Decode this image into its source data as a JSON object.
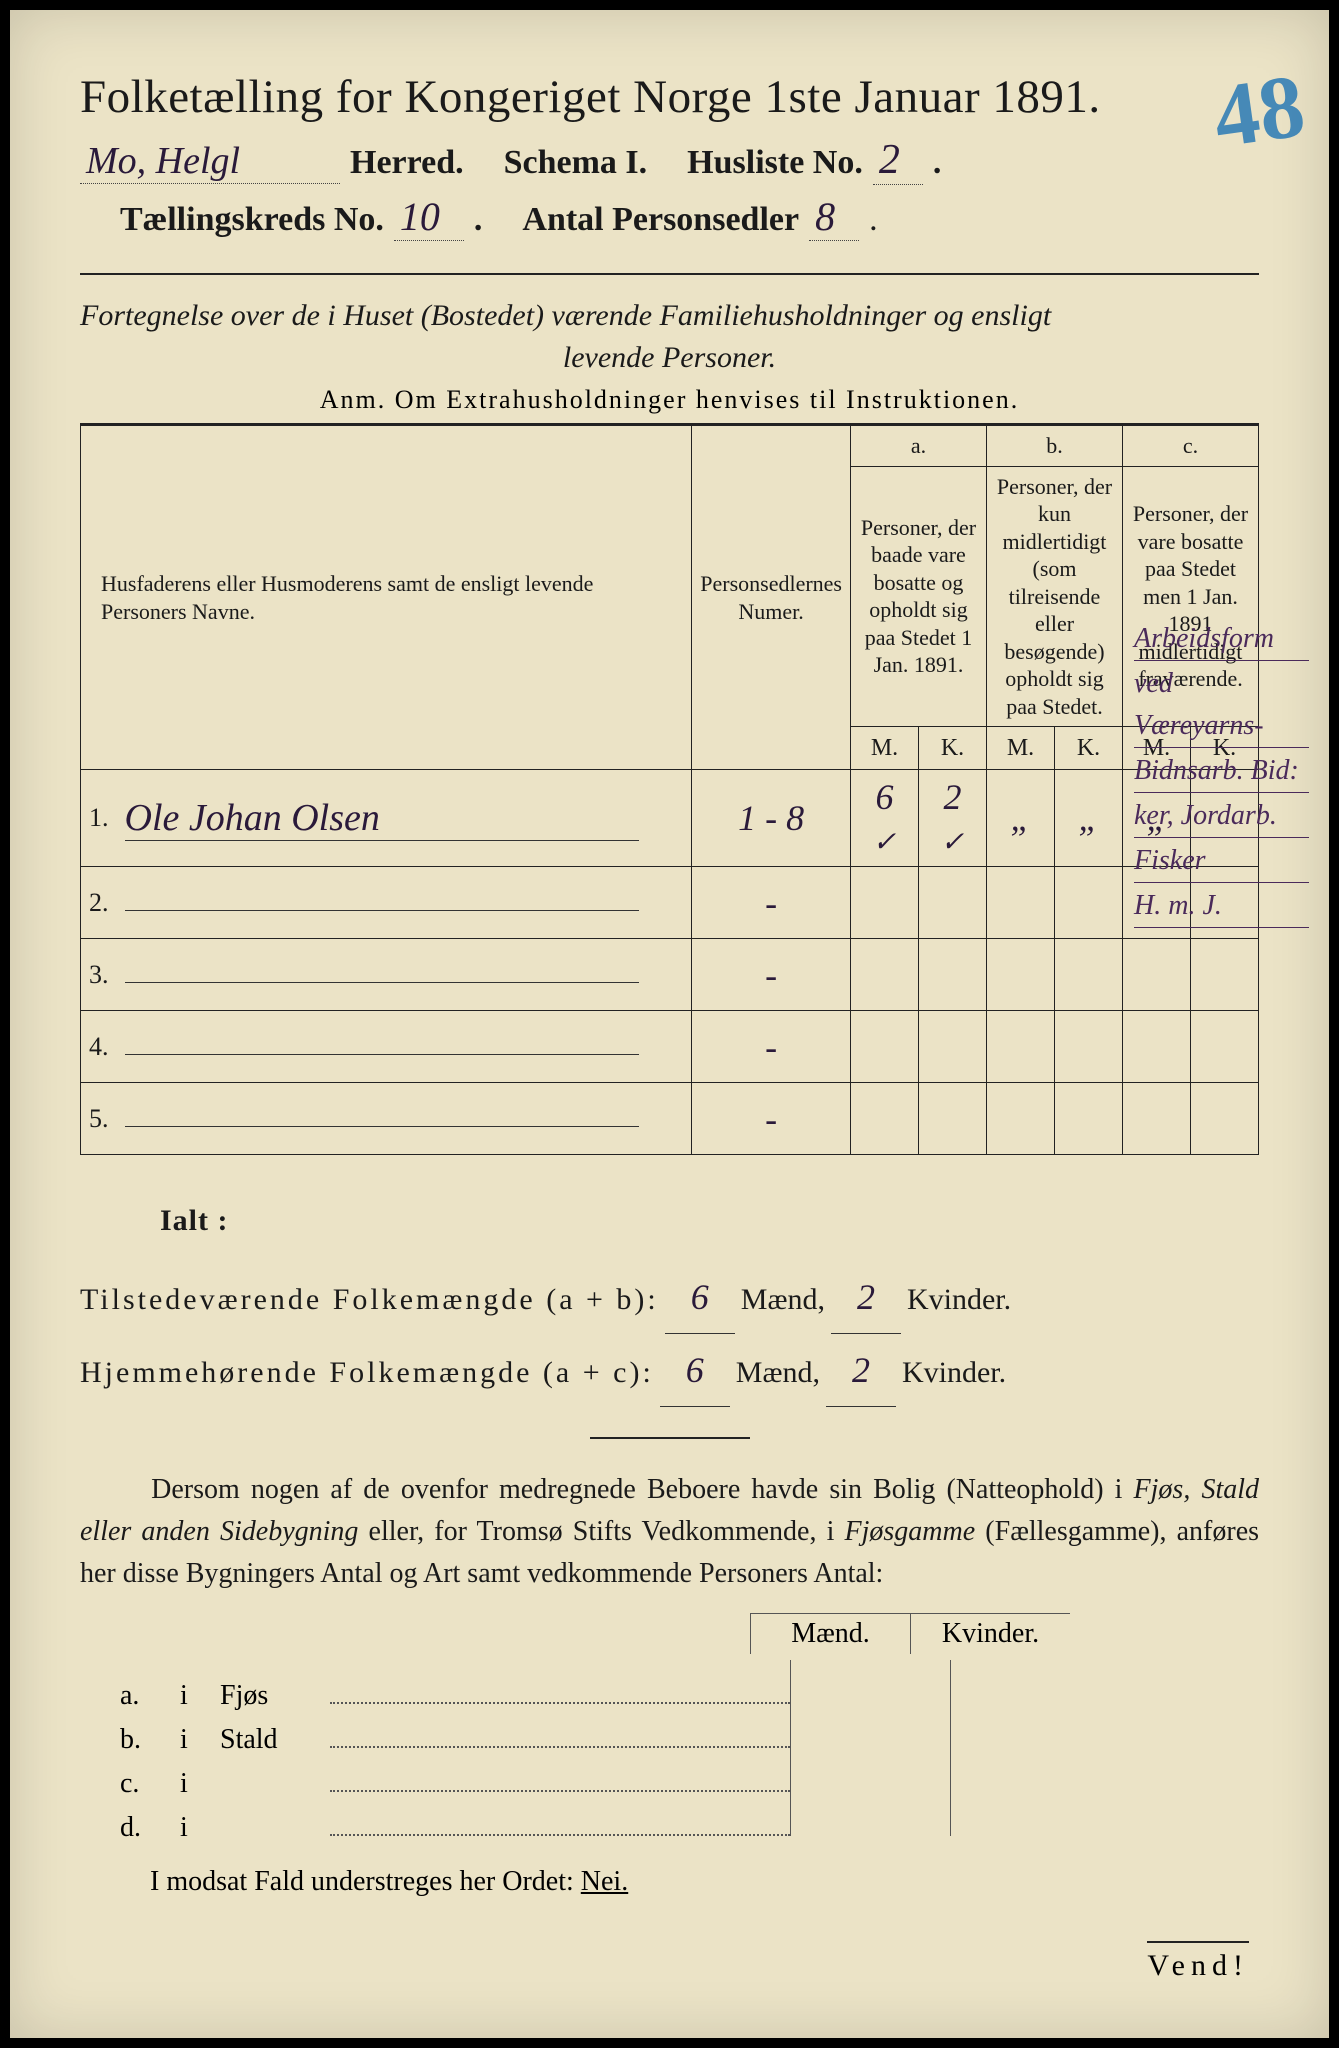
{
  "page": {
    "background_color": "#ebe3c6",
    "text_color": "#1a1a1a",
    "handwriting_color": "#2a1a3a",
    "corner_color": "#2a7ab5"
  },
  "corner_number": "48",
  "header": {
    "title": "Folketælling for Kongeriget Norge 1ste Januar 1891.",
    "herred_hw": "Mo, Helgl",
    "herred_label": "Herred.",
    "schema": "Schema I.",
    "husliste_label": "Husliste No.",
    "husliste_hw": "2",
    "kreds_label": "Tællingskreds No.",
    "kreds_hw": "10",
    "antal_label": "Antal Personsedler",
    "antal_hw": "8"
  },
  "subheader": {
    "line1": "Fortegnelse over de i Huset (Bostedet) værende Familiehusholdninger og ensligt",
    "line2": "levende Personer.",
    "anm": "Anm.  Om Extrahusholdninger henvises til Instruktionen."
  },
  "table": {
    "col_name": "Husfaderens eller Husmoderens samt de ensligt levende Personers Navne.",
    "col_num": "Personsedlernes Numer.",
    "col_a_top": "a.",
    "col_a": "Personer, der baade vare bosatte og opholdt sig paa Stedet 1 Jan. 1891.",
    "col_b_top": "b.",
    "col_b": "Personer, der kun midlertidigt (som tilreisende eller besøgende) opholdt sig paa Stedet.",
    "col_c_top": "c.",
    "col_c": "Personer, der vare bosatte paa Stedet men 1 Jan. 1891 midlertidigt fraværende.",
    "mk_m": "M.",
    "mk_k": "K.",
    "rows": [
      {
        "n": "1.",
        "name": "Ole Johan Olsen",
        "num": "1 - 8",
        "a_m": "6",
        "a_k": "2",
        "b_m": "„",
        "b_k": "„",
        "c_m": "„",
        "c_k": ""
      },
      {
        "n": "2.",
        "name": "",
        "num": "-",
        "a_m": "",
        "a_k": "",
        "b_m": "",
        "b_k": "",
        "c_m": "",
        "c_k": ""
      },
      {
        "n": "3.",
        "name": "",
        "num": "-",
        "a_m": "",
        "a_k": "",
        "b_m": "",
        "b_k": "",
        "c_m": "",
        "c_k": ""
      },
      {
        "n": "4.",
        "name": "",
        "num": "-",
        "a_m": "",
        "a_k": "",
        "b_m": "",
        "b_k": "",
        "c_m": "",
        "c_k": ""
      },
      {
        "n": "5.",
        "name": "",
        "num": "-",
        "a_m": "",
        "a_k": "",
        "b_m": "",
        "b_k": "",
        "c_m": "",
        "c_k": ""
      }
    ]
  },
  "margin_notes": [
    "Arbeidsform",
    "ved Væreyarns-",
    "Bidnsarb. Bid:",
    "ker, Jordarb.",
    "Fisker",
    "H. m. J."
  ],
  "totals": {
    "ialt": "Ialt :",
    "present_label": "Tilstedeværende Folkemængde (a + b):",
    "home_label": "Hjemmehørende Folkemængde (a + c):",
    "present_m": "6",
    "present_k": "2",
    "home_m": "6",
    "home_k": "2",
    "maend": "Mænd,",
    "kvinder": "Kvinder."
  },
  "para": {
    "text1": "Dersom nogen af de ovenfor medregnede Beboere havde sin Bolig (Natteophold) i ",
    "it1": "Fjøs, Stald eller anden Sidebygning",
    "text2": " eller, for Tromsø Stifts Vedkommende, i ",
    "it2": "Fjøsgamme",
    "text3": " (Fællesgamme), anføres her disse Bygningers Antal og Art samt vedkommende Personers Antal:"
  },
  "bldg": {
    "head_m": "Mænd.",
    "head_k": "Kvinder.",
    "rows": [
      {
        "a": "a.",
        "b": "i",
        "c": "Fjøs"
      },
      {
        "a": "b.",
        "b": "i",
        "c": "Stald"
      },
      {
        "a": "c.",
        "b": "i",
        "c": ""
      },
      {
        "a": "d.",
        "b": "i",
        "c": ""
      }
    ]
  },
  "neiline": {
    "pre": "I modsat Fald understreges her Ordet:",
    "nei": "Nei."
  },
  "vend": "Vend!"
}
